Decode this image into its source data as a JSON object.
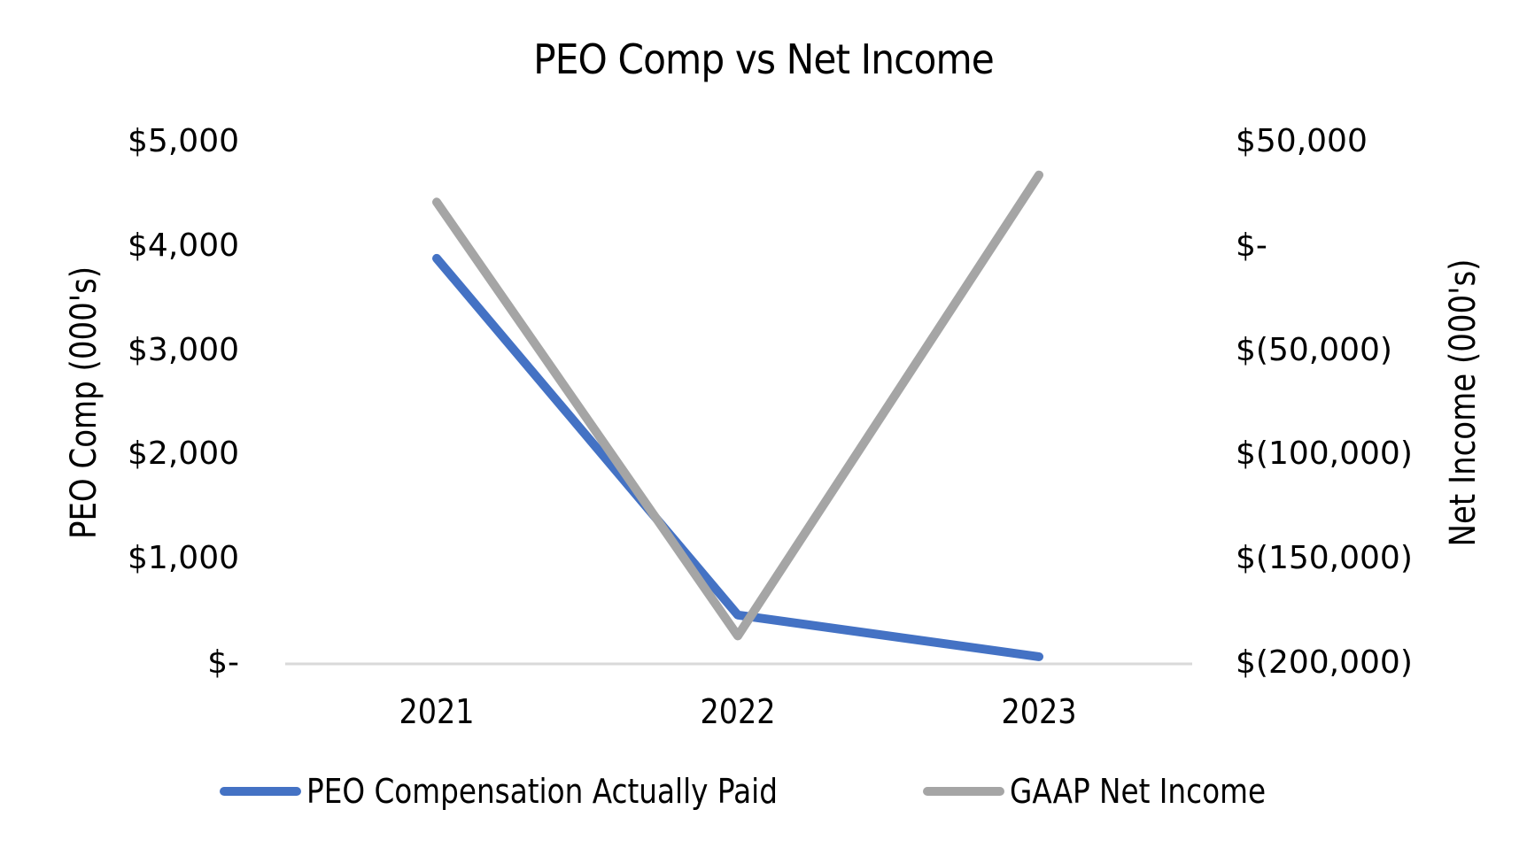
{
  "chart_data": {
    "type": "line",
    "title": "PEO Comp vs Net Income",
    "categories": [
      "2021",
      "2022",
      "2023"
    ],
    "xlabel": "",
    "ylabel": "PEO Comp (000's)",
    "ylabel_right": "Net Income (000's)",
    "ylim": [
      0,
      5000
    ],
    "ylim_right": [
      -200000,
      50000
    ],
    "yticks": [
      "$5,000",
      "$4,000",
      "$3,000",
      "$2,000",
      "$1,000",
      "$-"
    ],
    "yticks_right": [
      "$50,000",
      "$-",
      "$(50,000)",
      "$(100,000)",
      "$(150,000)",
      "$(200,000)"
    ],
    "grid": false,
    "legend_position": "bottom",
    "series": [
      {
        "name": "PEO Compensation Actually Paid",
        "axis": "left",
        "color": "#4472C4",
        "values": [
          3880,
          460,
          60
        ]
      },
      {
        "name": "GAAP Net Income",
        "axis": "right",
        "color": "#A5A5A5",
        "values": [
          21000,
          -187000,
          34000
        ]
      }
    ]
  }
}
